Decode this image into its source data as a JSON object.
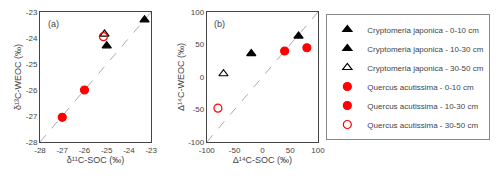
{
  "chart_data": [
    {
      "type": "scatter",
      "title": "(a)",
      "xlabel": "δ¹¹C-SOC (‰)",
      "ylabel": "δ¹³C-WEOC (‰)",
      "xlim": [
        -28,
        -23
      ],
      "ylim": [
        -28,
        -23
      ],
      "xticks": [
        -28,
        -27,
        -26,
        -25,
        -24,
        -23
      ],
      "yticks": [
        -28,
        -27,
        -26,
        -25,
        -24,
        -23
      ],
      "grid": false,
      "legend": "right",
      "series": [
        {
          "type": "line",
          "line_style": "dashed",
          "color": "#aaaaaa",
          "x": [
            -28,
            -23
          ],
          "values": [
            -28,
            -23
          ]
        },
        {
          "name": "Cryptomeria japonica - 0-10 cm",
          "marker": "triangle-up",
          "color": "black",
          "x": [
            -23.3
          ],
          "values": [
            -23.3
          ]
        },
        {
          "name": "Cryptomeria japonica - 10-30 cm",
          "marker": "triangle-up",
          "color": "black",
          "x": [
            -25.0
          ],
          "values": [
            -24.3
          ]
        },
        {
          "name": "Cryptomeria japonica - 30-50 cm",
          "marker": "triangle-up-open",
          "color": "black",
          "x": [
            -25.1
          ],
          "values": [
            -23.85
          ]
        },
        {
          "name": "Quercus acutissima - 0-10 cm",
          "marker": "circle",
          "color": "red",
          "x": [
            -26.0
          ],
          "values": [
            -26.0
          ]
        },
        {
          "name": "Quercus acutissima - 10-30 cm",
          "marker": "circle",
          "color": "red",
          "x": [
            -27.0
          ],
          "values": [
            -27.05
          ]
        },
        {
          "name": "Quercus acutissima - 30-50 cm",
          "marker": "circle-open",
          "color": "red",
          "x": [
            -25.15
          ],
          "values": [
            -23.95
          ]
        }
      ]
    },
    {
      "type": "scatter",
      "title": "(b)",
      "xlabel": "Δ¹⁴C-SOC (‰)",
      "ylabel": "Δ¹⁴C-WEOC (‰)",
      "xlim": [
        -100,
        100
      ],
      "ylim": [
        -100,
        100
      ],
      "xticks": [
        -100,
        -50,
        0,
        50,
        100
      ],
      "yticks": [
        -100,
        -50,
        0,
        50,
        100
      ],
      "grid": false,
      "legend": "right",
      "series": [
        {
          "type": "line",
          "line_style": "dashed",
          "color": "#aaaaaa",
          "x": [
            -100,
            100
          ],
          "values": [
            -100,
            100
          ]
        },
        {
          "name": "Cryptomeria japonica - 0-10 cm",
          "marker": "triangle-up",
          "color": "black",
          "x": [
            65.0
          ],
          "values": [
            63.0
          ]
        },
        {
          "name": "Cryptomeria japonica - 10-30 cm",
          "marker": "triangle-up",
          "color": "black",
          "x": [
            -20.0
          ],
          "values": [
            36.0
          ]
        },
        {
          "name": "Cryptomeria japonica - 30-50 cm",
          "marker": "triangle-up-open",
          "color": "black",
          "x": [
            -70.0
          ],
          "values": [
            5.0
          ]
        },
        {
          "name": "Quercus acutissima - 0-10 cm",
          "marker": "circle",
          "color": "red",
          "x": [
            40.0
          ],
          "values": [
            40.0
          ]
        },
        {
          "name": "Quercus acutissima - 10-30 cm",
          "marker": "circle",
          "color": "red",
          "x": [
            80.0
          ],
          "values": [
            45.0
          ]
        },
        {
          "name": "Quercus acutissima - 30-50 cm",
          "marker": "circle-open",
          "color": "red",
          "x": [
            -80.0
          ],
          "values": [
            -48.0
          ]
        }
      ]
    }
  ]
}
